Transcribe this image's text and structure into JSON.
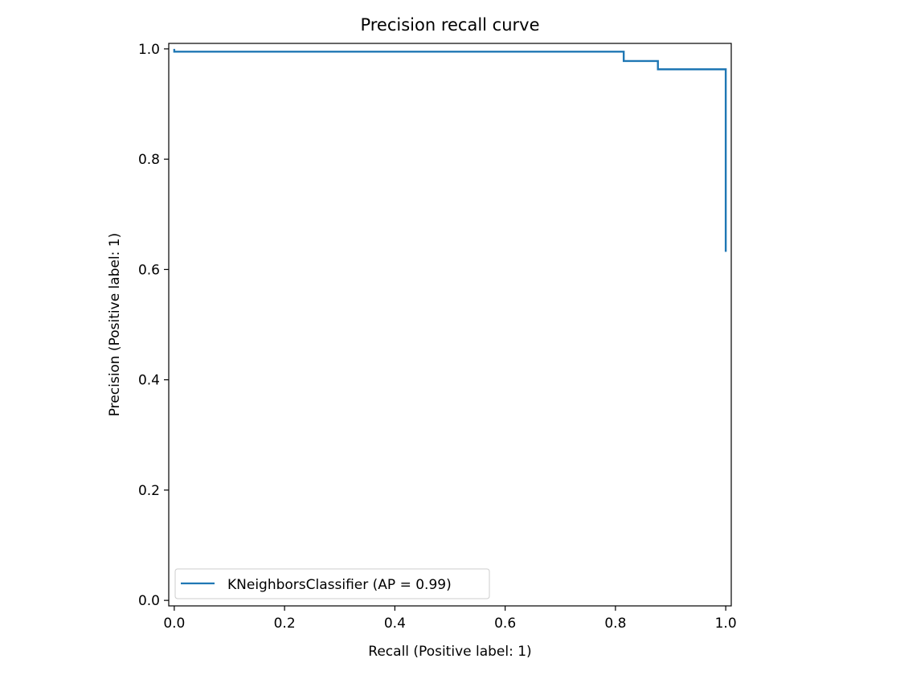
{
  "colors": {
    "background": "#ffffff",
    "axes": "#000000",
    "series_line": "#1f77b4",
    "legend_border": "#cccccc"
  },
  "chart_data": {
    "type": "line",
    "title": "Precision recall curve",
    "xlabel": "Recall (Positive label: 1)",
    "ylabel": "Precision (Positive label: 1)",
    "xlim": [
      -0.01,
      1.01
    ],
    "ylim": [
      -0.01,
      1.01
    ],
    "xticks": [
      0.0,
      0.2,
      0.4,
      0.6,
      0.8,
      1.0
    ],
    "yticks": [
      0.0,
      0.2,
      0.4,
      0.6,
      0.8,
      1.0
    ],
    "xtick_labels": [
      "0.0",
      "0.2",
      "0.4",
      "0.6",
      "0.8",
      "1.0"
    ],
    "ytick_labels": [
      "0.0",
      "0.2",
      "0.4",
      "0.6",
      "0.8",
      "1.0"
    ],
    "grid": false,
    "legend_position": "lower-left",
    "step": "post",
    "series": [
      {
        "name": "KNeighborsClassifier (AP = 0.99)",
        "color": "#1f77b4",
        "x": [
          0.0,
          0.0,
          0.815,
          0.815,
          0.877,
          0.877,
          1.0,
          1.0
        ],
        "y": [
          1.0,
          0.995,
          0.995,
          0.978,
          0.978,
          0.963,
          0.963,
          0.632
        ]
      }
    ]
  }
}
